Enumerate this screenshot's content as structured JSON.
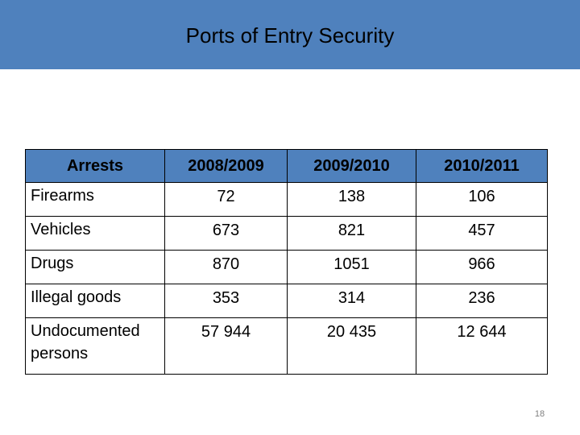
{
  "slide": {
    "title": "Ports of Entry Security",
    "page_number": "18",
    "header_color": "#4f81bd"
  },
  "table": {
    "headers": [
      "Arrests",
      "2008/2009",
      "2009/2010",
      "2010/2011"
    ],
    "rows": [
      {
        "label": "Firearms",
        "values": [
          "72",
          "138",
          "106"
        ]
      },
      {
        "label": "Vehicles",
        "values": [
          "673",
          "821",
          "457"
        ]
      },
      {
        "label": "Drugs",
        "values": [
          "870",
          "1051",
          "966"
        ]
      },
      {
        "label": "Illegal goods",
        "values": [
          "353",
          "314",
          "236"
        ]
      },
      {
        "label": "Undocumented persons",
        "values": [
          "57 944",
          "20 435",
          "12 644"
        ]
      }
    ]
  }
}
